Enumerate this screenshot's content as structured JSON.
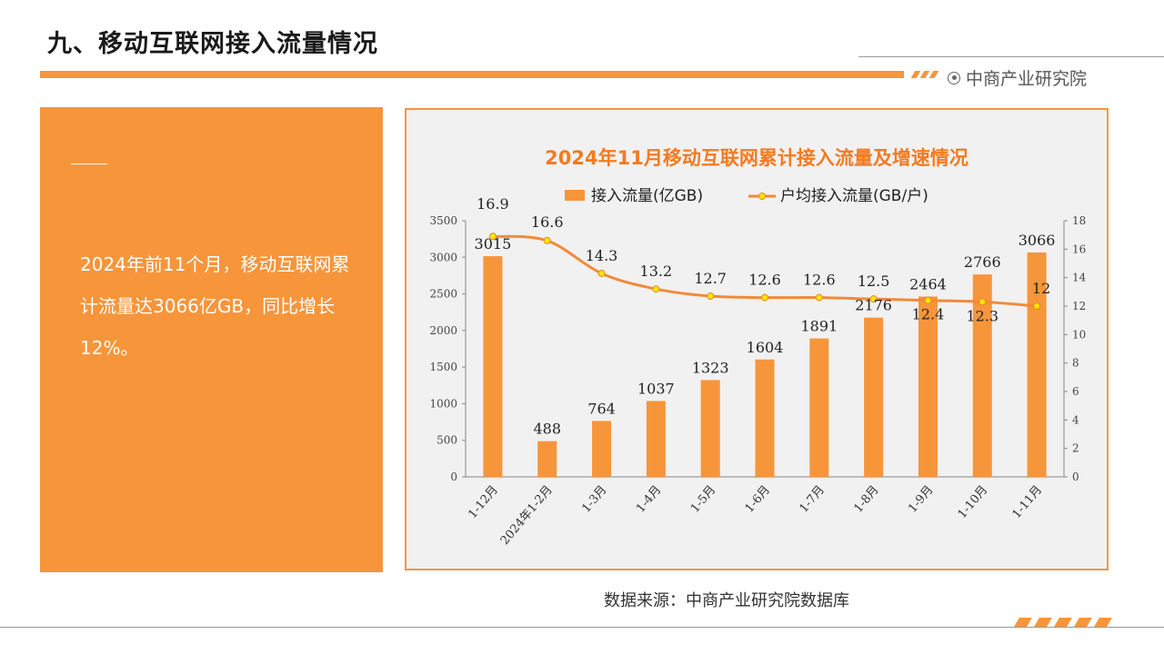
{
  "page": {
    "title": "九、移动互联网接入流量情况",
    "brand": "中商产业研究院",
    "summary": "2024年前11个月，移动互联网累计流量达3066亿GB，同比增长12%。",
    "source": "数据来源：中商产业研究院数据库"
  },
  "colors": {
    "accent": "#f7953b",
    "line": "#f28a3a",
    "marker_fill": "#ffe600",
    "title_text": "#f47a20"
  },
  "chart_data": {
    "type": "bar",
    "title": "2024年11月移动互联网累计接入流量及增速情况",
    "categories": [
      "1-12月",
      "2024年1-2月",
      "1-3月",
      "1-4月",
      "1-5月",
      "1-6月",
      "1-7月",
      "1-8月",
      "1-9月",
      "1-10月",
      "1-11月"
    ],
    "series": [
      {
        "name": "接入流量(亿GB)",
        "type": "bar",
        "axis": "left",
        "values": [
          3015,
          488,
          764,
          1037,
          1323,
          1604,
          1891,
          2176,
          2464,
          2766,
          3066
        ],
        "labels": [
          "3015",
          "488",
          "764",
          "1037",
          "1323",
          "1604",
          "1891",
          "2176",
          "2464",
          "2766",
          "3066"
        ]
      },
      {
        "name": "户均接入流量(GB/户)",
        "type": "line",
        "axis": "right",
        "values": [
          16.9,
          16.6,
          14.3,
          13.2,
          12.7,
          12.6,
          12.6,
          12.5,
          12.4,
          12.3,
          12
        ],
        "labels": [
          "16.9",
          "16.6",
          "14.3",
          "13.2",
          "12.7",
          "12.6",
          "12.6",
          "12.5",
          "12.4",
          "12.3",
          "12"
        ]
      }
    ],
    "y_left": {
      "min": 0,
      "max": 3500,
      "ticks": [
        "0",
        "500",
        "1000",
        "1500",
        "2000",
        "2500",
        "3000",
        "3500"
      ]
    },
    "y_right": {
      "min": 0,
      "max": 18,
      "ticks": [
        "0",
        "2",
        "4",
        "6",
        "8",
        "10",
        "12",
        "14",
        "16",
        "18"
      ]
    },
    "legend_position": "top",
    "grid": false
  }
}
